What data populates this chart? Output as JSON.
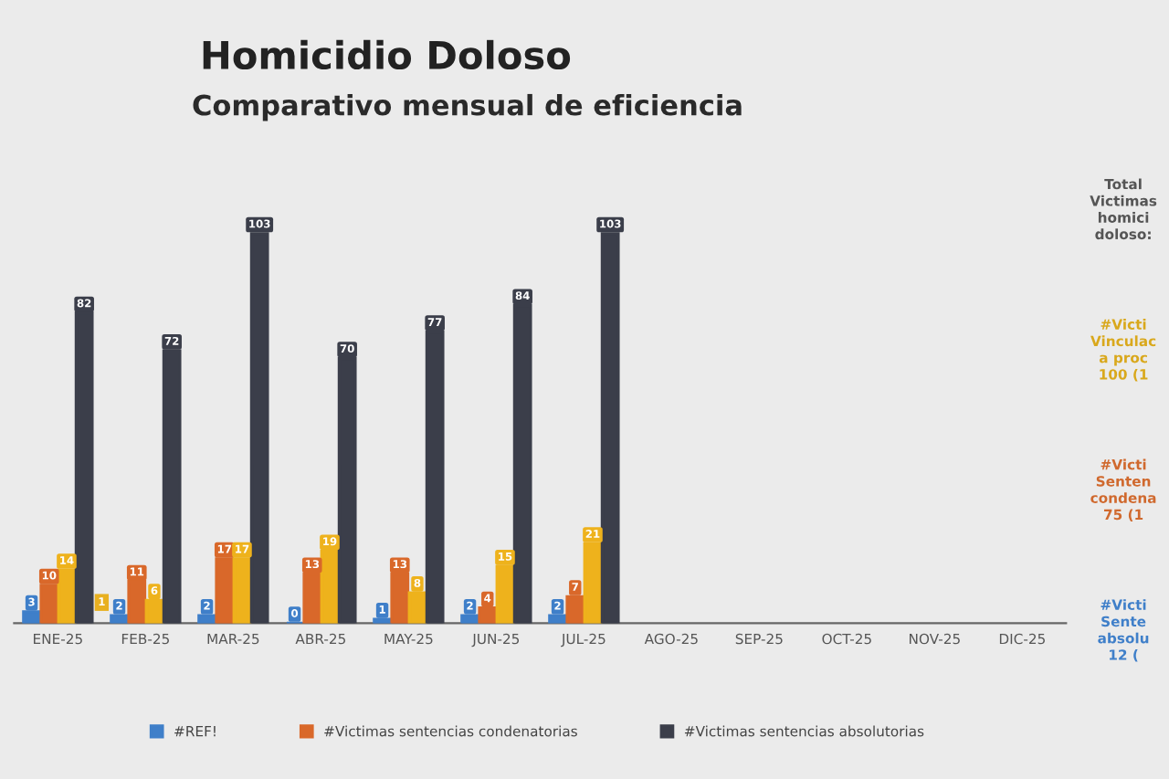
{
  "chart_data": [
    {
      "type": "bar",
      "title": "Homicidio Doloso",
      "subtitle": "Comparativo mensual de eficiencia",
      "categories": [
        "ENE-25",
        "FEB-25",
        "MAR-25",
        "ABR-25",
        "MAY-25",
        "JUN-25",
        "JUL-25",
        "AGO-25",
        "SEP-25",
        "OCT-25",
        "NOV-25",
        "DIC-25"
      ],
      "series": [
        {
          "name": "#REF!",
          "color": "#3f7fc9",
          "values": [
            3,
            2,
            2,
            0,
            1,
            2,
            2,
            null,
            null,
            null,
            null,
            null
          ]
        },
        {
          "name": "#Victimas sentencias condenatorias",
          "color": "#d9682a",
          "values": [
            10,
            11,
            17,
            13,
            13,
            4,
            7,
            null,
            null,
            null,
            null,
            null
          ]
        },
        {
          "color": "#eeb21c",
          "values": [
            14,
            6,
            17,
            19,
            8,
            15,
            21,
            null,
            null,
            null,
            null,
            null
          ]
        },
        {
          "name": "#Victimas sentencias absolutorias",
          "color": "#3b3e4a",
          "values": [
            82,
            72,
            103,
            70,
            77,
            84,
            103,
            null,
            null,
            null,
            null,
            null
          ]
        }
      ],
      "data_labels": true,
      "legend": "bottom",
      "annotations": [
        "1"
      ]
    },
    {
      "type": "other",
      "annotations": [
        "Total\nVictimas\nhomici\ndoloso:",
        "#Victi\nVinculac\na proc\n100 (1",
        "#Victi\nSenten\ncondena\n75 (1",
        "#Victi\nSente\nabsolu\n12 ("
      ]
    }
  ]
}
